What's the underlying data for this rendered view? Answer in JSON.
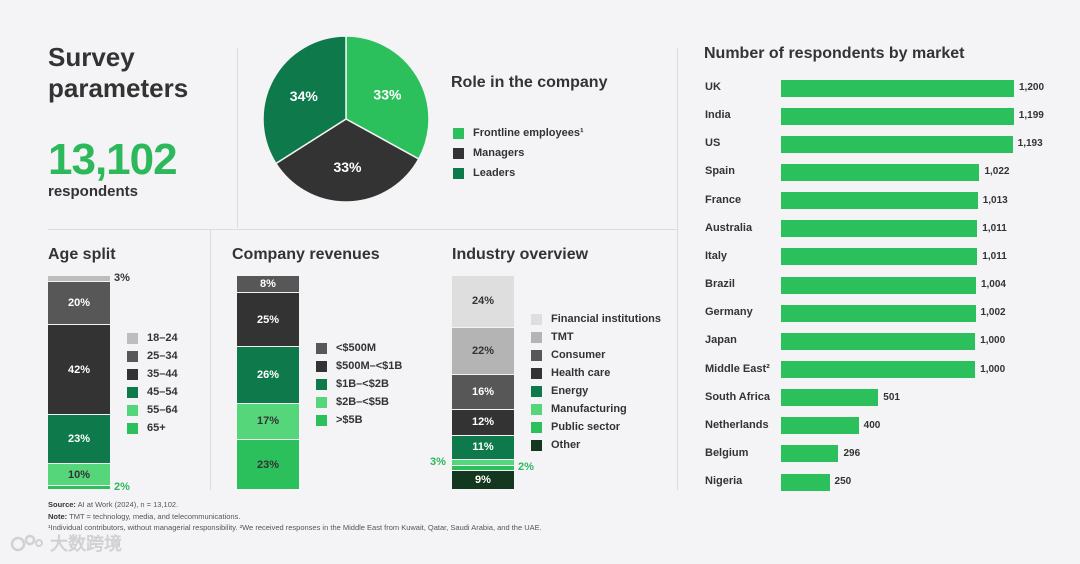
{
  "header": {
    "title": "Survey parameters",
    "respondents_count": "13,102",
    "respondents_label": "respondents"
  },
  "colors": {
    "bright_green": "#2cc05c",
    "dark_green": "#0e7a4c",
    "charcoal": "#333333",
    "light_green": "#56d67a"
  },
  "chart_data": [
    {
      "id": "role",
      "type": "pie",
      "title": "Role in the company",
      "series": [
        {
          "name": "Frontline employees¹",
          "value": 33,
          "label": "33%",
          "color": "#2cc05c",
          "text_color": "#ffffff"
        },
        {
          "name": "Managers",
          "value": 33,
          "label": "33%",
          "color": "#333333",
          "text_color": "#ffffff"
        },
        {
          "name": "Leaders",
          "value": 34,
          "label": "34%",
          "color": "#0e7a4c",
          "text_color": "#ffffff"
        }
      ]
    },
    {
      "id": "age",
      "type": "bar",
      "stacked": true,
      "title": "Age split",
      "series": [
        {
          "name": "18–24",
          "value": 3,
          "label": "3%",
          "color": "#bdbdbd",
          "text_color": "#333333"
        },
        {
          "name": "25–34",
          "value": 20,
          "label": "20%",
          "color": "#575757",
          "text_color": "#ffffff"
        },
        {
          "name": "35–44",
          "value": 42,
          "label": "42%",
          "color": "#333333",
          "text_color": "#ffffff"
        },
        {
          "name": "45–54",
          "value": 23,
          "label": "23%",
          "color": "#0e7a4c",
          "text_color": "#ffffff"
        },
        {
          "name": "55–64",
          "value": 10,
          "label": "10%",
          "color": "#56d67a",
          "text_color": "#333333"
        },
        {
          "name": "65+",
          "value": 2,
          "label": "2%",
          "color": "#2cc05c",
          "text_color": "#2db85c"
        }
      ]
    },
    {
      "id": "revenue",
      "type": "bar",
      "stacked": true,
      "title": "Company revenues",
      "series": [
        {
          "name": "<$500M",
          "value": 8,
          "label": "8%",
          "color": "#575757",
          "text_color": "#ffffff"
        },
        {
          "name": "$500M–<$1B",
          "value": 25,
          "label": "25%",
          "color": "#333333",
          "text_color": "#ffffff"
        },
        {
          "name": "$1B–<$2B",
          "value": 26,
          "label": "26%",
          "color": "#0e7a4c",
          "text_color": "#ffffff"
        },
        {
          "name": "$2B–<$5B",
          "value": 17,
          "label": "17%",
          "color": "#56d67a",
          "text_color": "#333333"
        },
        {
          "name": ">$5B",
          "value": 23,
          "label": "23%",
          "color": "#2cc05c",
          "text_color": "#333333"
        }
      ]
    },
    {
      "id": "industry",
      "type": "bar",
      "stacked": true,
      "title": "Industry overview",
      "series": [
        {
          "name": "Financial institutions",
          "value": 24,
          "label": "24%",
          "color": "#dedede",
          "text_color": "#333333"
        },
        {
          "name": "TMT",
          "value": 22,
          "label": "22%",
          "color": "#b4b4b4",
          "text_color": "#333333"
        },
        {
          "name": "Consumer",
          "value": 16,
          "label": "16%",
          "color": "#575757",
          "text_color": "#ffffff"
        },
        {
          "name": "Health care",
          "value": 12,
          "label": "12%",
          "color": "#333333",
          "text_color": "#ffffff"
        },
        {
          "name": "Energy",
          "value": 11,
          "label": "11%",
          "color": "#0e7a4c",
          "text_color": "#ffffff"
        },
        {
          "name": "Manufacturing",
          "value": 3,
          "label": "3%",
          "color": "#56d67a",
          "text_color": "#2db85c"
        },
        {
          "name": "Public sector",
          "value": 2,
          "label": "2%",
          "color": "#2cc05c",
          "text_color": "#2db85c"
        },
        {
          "name": "Other",
          "value": 9,
          "label": "9%",
          "color": "#14381f",
          "text_color": "#ffffff"
        }
      ]
    },
    {
      "id": "market",
      "type": "bar",
      "orientation": "horizontal",
      "title": "Number of respondents by market",
      "categories": [
        "UK",
        "India",
        "US",
        "Spain",
        "France",
        "Australia",
        "Italy",
        "Brazil",
        "Germany",
        "Japan",
        "Middle East²",
        "South Africa",
        "Netherlands",
        "Belgium",
        "Nigeria"
      ],
      "values": [
        1200,
        1199,
        1193,
        1022,
        1013,
        1011,
        1011,
        1004,
        1002,
        1000,
        1000,
        501,
        400,
        296,
        250
      ],
      "value_labels": [
        "1,200",
        "1,199",
        "1,193",
        "1,022",
        "1,013",
        "1,011",
        "1,011",
        "1,004",
        "1,002",
        "1,000",
        "1,000",
        "501",
        "400",
        "296",
        "250"
      ],
      "xlim": [
        0,
        1200
      ]
    }
  ],
  "footnotes": {
    "source_label": "Source:",
    "source_text": " AI at Work (2024), n = 13,102.",
    "note_label": "Note:",
    "note_text": " TMT = technology, media, and telecommunications.",
    "footnote_text": "¹Individual contributors, without managerial responsibility. ²We received responses in the Middle East from Kuwait, Qatar, Saudi Arabia, and the UAE."
  },
  "watermark": {
    "text": "大数跨境",
    "icon": "paw-logo-icon"
  }
}
